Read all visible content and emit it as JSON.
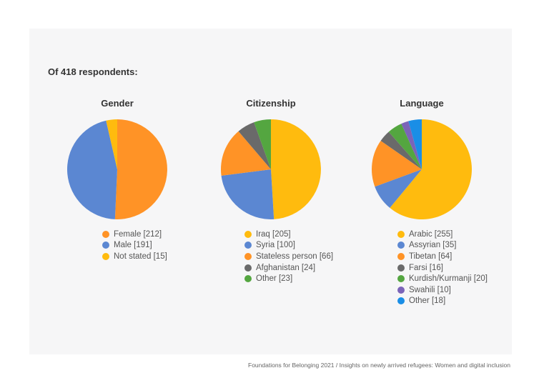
{
  "heading": "Of 418 respondents:",
  "source": "Foundations for Belonging 2021 / Insights on newly arrived refugees: Women and digital inclusion",
  "chart_data": [
    {
      "type": "pie",
      "title": "Gender",
      "slices": [
        {
          "label": "Female [212]",
          "value": 212,
          "color": "#ff9326"
        },
        {
          "label": "Male [191]",
          "value": 191,
          "color": "#5b87d2"
        },
        {
          "label": "Not stated [15]",
          "value": 15,
          "color": "#ffbb0e"
        }
      ]
    },
    {
      "type": "pie",
      "title": "Citizenship",
      "slices": [
        {
          "label": "Iraq [205]",
          "value": 205,
          "color": "#ffbb0e"
        },
        {
          "label": "Syria [100]",
          "value": 100,
          "color": "#5b87d2"
        },
        {
          "label": "Stateless person [66]",
          "value": 66,
          "color": "#ff9326"
        },
        {
          "label": "Afghanistan [24]",
          "value": 24,
          "color": "#6a6a6a"
        },
        {
          "label": "Other [23]",
          "value": 23,
          "color": "#54a640"
        }
      ]
    },
    {
      "type": "pie",
      "title": "Language",
      "slices": [
        {
          "label": "Arabic [255]",
          "value": 255,
          "color": "#ffbb0e"
        },
        {
          "label": "Assyrian [35]",
          "value": 35,
          "color": "#5b87d2"
        },
        {
          "label": "Tibetan [64]",
          "value": 64,
          "color": "#ff9326"
        },
        {
          "label": "Farsi [16]",
          "value": 16,
          "color": "#6a6a6a"
        },
        {
          "label": "Kurdish/Kurmanji [20]",
          "value": 20,
          "color": "#54a640"
        },
        {
          "label": "Swahili [10]",
          "value": 10,
          "color": "#7b64b8"
        },
        {
          "label": "Other [18]",
          "value": 18,
          "color": "#1a8ee6"
        }
      ]
    }
  ]
}
